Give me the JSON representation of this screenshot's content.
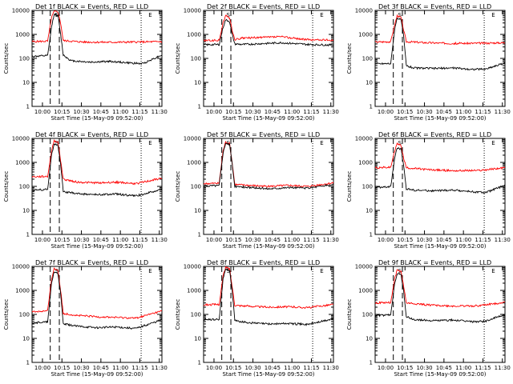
{
  "chart_data": [
    {
      "type": "line",
      "title": "Det 1f BLACK = Events, RED = LLD",
      "xlabel": "Start Time (15-May-09 09:52:00)",
      "ylabel": "Counts/sec",
      "xticks": [
        "10:00",
        "10:15",
        "10:30",
        "10:45",
        "11:00",
        "11:15",
        "11:30"
      ],
      "xlim_minutes": [
        0,
        100
      ],
      "ylim": [
        1,
        10000
      ],
      "yscale": "log",
      "yticks": [
        "1",
        "10",
        "100",
        "1000",
        "10000"
      ],
      "markers": {
        "dashed_minutes": [
          14,
          21
        ],
        "dotted_minutes": [
          84
        ],
        "labels": [
          {
            "text": "S",
            "x_minutes": 19
          },
          {
            "text": "E",
            "x_minutes": 91
          }
        ]
      },
      "series": [
        {
          "color": "#ff0000",
          "x": [
            0,
            12,
            15,
            17,
            20,
            22,
            24,
            40,
            60,
            80,
            100
          ],
          "values": [
            500,
            520,
            5000,
            9000,
            8500,
            3000,
            550,
            480,
            470,
            480,
            500
          ]
        },
        {
          "color": "#000000",
          "x": [
            0,
            12,
            15,
            17,
            20,
            22,
            24,
            30,
            45,
            60,
            75,
            85,
            100
          ],
          "values": [
            120,
            130,
            2000,
            7000,
            6000,
            1000,
            140,
            80,
            70,
            75,
            65,
            60,
            140
          ]
        }
      ]
    },
    {
      "type": "line",
      "title": "Det 2f BLACK = Events, RED = LLD",
      "xlabel": "Start Time (15-May-09 09:52:00)",
      "ylabel": "Counts/sec",
      "xticks": [
        "10:00",
        "10:15",
        "10:30",
        "10:45",
        "11:00",
        "11:15",
        "11:30"
      ],
      "xlim_minutes": [
        0,
        100
      ],
      "ylim": [
        1,
        10000
      ],
      "yscale": "log",
      "yticks": [
        "1",
        "10",
        "100",
        "1000",
        "10000"
      ],
      "markers": {
        "dashed_minutes": [
          14,
          21
        ],
        "dotted_minutes": [
          84
        ],
        "labels": [
          {
            "text": "S",
            "x_minutes": 19
          },
          {
            "text": "E",
            "x_minutes": 91
          }
        ]
      },
      "series": [
        {
          "color": "#ff0000",
          "x": [
            0,
            12,
            15,
            17,
            20,
            22,
            24,
            30,
            60,
            80,
            100
          ],
          "values": [
            550,
            560,
            3000,
            6000,
            5000,
            1500,
            600,
            700,
            800,
            600,
            580
          ]
        },
        {
          "color": "#000000",
          "x": [
            0,
            12,
            15,
            17,
            20,
            22,
            24,
            30,
            60,
            80,
            100
          ],
          "values": [
            370,
            380,
            2000,
            4000,
            3500,
            1000,
            400,
            380,
            450,
            380,
            360
          ]
        }
      ]
    },
    {
      "type": "line",
      "title": "Det 3f BLACK = Events, RED = LLD",
      "xlabel": "Start Time (15-May-09 09:52:00)",
      "ylabel": "Counts/sec",
      "xticks": [
        "10:00",
        "10:15",
        "10:30",
        "10:45",
        "11:00",
        "11:15",
        "11:30"
      ],
      "xlim_minutes": [
        0,
        100
      ],
      "ylim": [
        1,
        10000
      ],
      "yscale": "log",
      "yticks": [
        "1",
        "10",
        "100",
        "1000",
        "10000"
      ],
      "markers": {
        "dashed_minutes": [
          14,
          21
        ],
        "dotted_minutes": [
          84
        ],
        "labels": [
          {
            "text": "S",
            "x_minutes": 19
          },
          {
            "text": "E",
            "x_minutes": 91
          }
        ]
      },
      "series": [
        {
          "color": "#ff0000",
          "x": [
            0,
            12,
            15,
            17,
            20,
            22,
            24,
            40,
            60,
            80,
            100
          ],
          "values": [
            480,
            500,
            2500,
            6000,
            5000,
            1500,
            500,
            450,
            420,
            430,
            450
          ]
        },
        {
          "color": "#000000",
          "x": [
            0,
            12,
            15,
            17,
            20,
            22,
            24,
            30,
            45,
            60,
            75,
            85,
            100
          ],
          "values": [
            60,
            62,
            1500,
            5000,
            4000,
            800,
            50,
            40,
            38,
            40,
            35,
            36,
            65
          ]
        }
      ]
    },
    {
      "type": "line",
      "title": "Det 4f BLACK = Events, RED = LLD",
      "xlabel": "Start Time (15-May-09 09:52:00)",
      "ylabel": "Counts/sec",
      "xticks": [
        "10:00",
        "10:15",
        "10:30",
        "10:45",
        "11:00",
        "11:15",
        "11:30"
      ],
      "xlim_minutes": [
        0,
        100
      ],
      "ylim": [
        1,
        10000
      ],
      "yscale": "log",
      "yticks": [
        "1",
        "10",
        "100",
        "1000",
        "10000"
      ],
      "markers": {
        "dashed_minutes": [
          14,
          21
        ],
        "dotted_minutes": [
          84
        ],
        "labels": [
          {
            "text": "S",
            "x_minutes": 19
          },
          {
            "text": "E",
            "x_minutes": 91
          }
        ]
      },
      "series": [
        {
          "color": "#ff0000",
          "x": [
            0,
            12,
            15,
            17,
            20,
            22,
            24,
            35,
            50,
            65,
            80,
            100
          ],
          "values": [
            250,
            260,
            3000,
            8000,
            7000,
            1200,
            200,
            150,
            140,
            150,
            130,
            220
          ]
        },
        {
          "color": "#000000",
          "x": [
            0,
            12,
            15,
            17,
            20,
            22,
            24,
            35,
            50,
            65,
            80,
            100
          ],
          "values": [
            70,
            75,
            2000,
            6000,
            5000,
            800,
            60,
            50,
            45,
            48,
            40,
            75
          ]
        }
      ]
    },
    {
      "type": "line",
      "title": "Det 5f BLACK = Events, RED = LLD",
      "xlabel": "Start Time (15-May-09 09:52:00)",
      "ylabel": "Counts/sec",
      "xticks": [
        "10:00",
        "10:15",
        "10:30",
        "10:45",
        "11:00",
        "11:15",
        "11:30"
      ],
      "xlim_minutes": [
        0,
        100
      ],
      "ylim": [
        1,
        10000
      ],
      "yscale": "log",
      "yticks": [
        "1",
        "10",
        "100",
        "1000",
        "10000"
      ],
      "markers": {
        "dashed_minutes": [
          14,
          21
        ],
        "dotted_minutes": [
          84
        ],
        "labels": [
          {
            "text": "S",
            "x_minutes": 19
          },
          {
            "text": "E",
            "x_minutes": 91
          }
        ]
      },
      "series": [
        {
          "color": "#ff0000",
          "x": [
            0,
            12,
            15,
            17,
            20,
            22,
            24,
            35,
            50,
            65,
            80,
            100
          ],
          "values": [
            130,
            135,
            3000,
            7000,
            6000,
            1000,
            120,
            110,
            100,
            110,
            100,
            140
          ]
        },
        {
          "color": "#000000",
          "x": [
            0,
            12,
            15,
            17,
            20,
            22,
            24,
            35,
            50,
            65,
            80,
            100
          ],
          "values": [
            105,
            110,
            2500,
            6500,
            5500,
            900,
            100,
            90,
            80,
            90,
            85,
            120
          ]
        }
      ]
    },
    {
      "type": "line",
      "title": "Det 6f BLACK = Events, RED = LLD",
      "xlabel": "Start Time (15-May-09 09:52:00)",
      "ylabel": "Counts/sec",
      "xticks": [
        "10:00",
        "10:15",
        "10:30",
        "10:45",
        "11:00",
        "11:15",
        "11:30"
      ],
      "xlim_minutes": [
        0,
        100
      ],
      "ylim": [
        1,
        10000
      ],
      "yscale": "log",
      "yticks": [
        "1",
        "10",
        "100",
        "1000",
        "10000"
      ],
      "markers": {
        "dashed_minutes": [
          14,
          21
        ],
        "dotted_minutes": [
          84
        ],
        "labels": [
          {
            "text": "S",
            "x_minutes": 19
          },
          {
            "text": "E",
            "x_minutes": 91
          }
        ]
      },
      "series": [
        {
          "color": "#ff0000",
          "x": [
            0,
            12,
            15,
            17,
            20,
            22,
            24,
            40,
            60,
            80,
            100
          ],
          "values": [
            600,
            620,
            3000,
            6000,
            5000,
            1500,
            600,
            500,
            450,
            460,
            600
          ]
        },
        {
          "color": "#000000",
          "x": [
            0,
            12,
            15,
            17,
            20,
            22,
            24,
            30,
            45,
            60,
            75,
            85,
            100
          ],
          "values": [
            90,
            95,
            1500,
            4000,
            3500,
            700,
            80,
            70,
            65,
            70,
            60,
            55,
            110
          ]
        }
      ]
    },
    {
      "type": "line",
      "title": "Det 7f BLACK = Events, RED = LLD",
      "xlabel": "Start Time (15-May-09 09:52:00)",
      "ylabel": "Counts/sec",
      "xticks": [
        "10:00",
        "10:15",
        "10:30",
        "10:45",
        "11:00",
        "11:15",
        "11:30"
      ],
      "xlim_minutes": [
        0,
        100
      ],
      "ylim": [
        1,
        10000
      ],
      "yscale": "log",
      "yticks": [
        "1",
        "10",
        "100",
        "1000",
        "10000"
      ],
      "markers": {
        "dashed_minutes": [
          14,
          21
        ],
        "dotted_minutes": [
          84
        ],
        "labels": [
          {
            "text": "S",
            "x_minutes": 19
          },
          {
            "text": "E",
            "x_minutes": 91
          }
        ]
      },
      "series": [
        {
          "color": "#ff0000",
          "x": [
            0,
            12,
            15,
            17,
            20,
            22,
            24,
            35,
            50,
            65,
            80,
            100
          ],
          "values": [
            130,
            140,
            3000,
            8000,
            7000,
            1000,
            110,
            90,
            80,
            75,
            70,
            140
          ]
        },
        {
          "color": "#000000",
          "x": [
            0,
            12,
            15,
            17,
            20,
            22,
            24,
            35,
            50,
            65,
            80,
            100
          ],
          "values": [
            45,
            48,
            2000,
            6000,
            5000,
            700,
            40,
            32,
            28,
            30,
            26,
            60
          ]
        }
      ]
    },
    {
      "type": "line",
      "title": "Det 8f BLACK = Events, RED = LLD",
      "xlabel": "Start Time (15-May-09 09:52:00)",
      "ylabel": "Counts/sec",
      "xticks": [
        "10:00",
        "10:15",
        "10:30",
        "10:45",
        "11:00",
        "11:15",
        "11:30"
      ],
      "xlim_minutes": [
        0,
        100
      ],
      "ylim": [
        1,
        10000
      ],
      "yscale": "log",
      "yticks": [
        "1",
        "10",
        "100",
        "1000",
        "10000"
      ],
      "markers": {
        "dashed_minutes": [
          14,
          21
        ],
        "dotted_minutes": [
          84
        ],
        "labels": [
          {
            "text": "S",
            "x_minutes": 19
          },
          {
            "text": "E",
            "x_minutes": 91
          }
        ]
      },
      "series": [
        {
          "color": "#ff0000",
          "x": [
            0,
            12,
            15,
            17,
            20,
            22,
            24,
            35,
            50,
            65,
            80,
            100
          ],
          "values": [
            250,
            260,
            4000,
            9000,
            8000,
            1500,
            240,
            220,
            200,
            210,
            190,
            260
          ]
        },
        {
          "color": "#000000",
          "x": [
            0,
            12,
            15,
            17,
            20,
            22,
            24,
            35,
            50,
            65,
            80,
            100
          ],
          "values": [
            60,
            62,
            3000,
            8000,
            7000,
            1000,
            55,
            45,
            40,
            42,
            38,
            65
          ]
        }
      ]
    },
    {
      "type": "line",
      "title": "Det 9f BLACK = Events, RED = LLD",
      "xlabel": "Start Time (15-May-09 09:52:00)",
      "ylabel": "Counts/sec",
      "xticks": [
        "10:00",
        "10:15",
        "10:30",
        "10:45",
        "11:00",
        "11:15",
        "11:30"
      ],
      "xlim_minutes": [
        0,
        100
      ],
      "ylim": [
        1,
        10000
      ],
      "yscale": "log",
      "yticks": [
        "1",
        "10",
        "100",
        "1000",
        "10000"
      ],
      "markers": {
        "dashed_minutes": [
          14,
          21
        ],
        "dotted_minutes": [
          84
        ],
        "labels": [
          {
            "text": "S",
            "x_minutes": 19
          },
          {
            "text": "E",
            "x_minutes": 91
          }
        ]
      },
      "series": [
        {
          "color": "#ff0000",
          "x": [
            0,
            12,
            15,
            17,
            20,
            22,
            24,
            40,
            60,
            80,
            100
          ],
          "values": [
            300,
            310,
            3000,
            7000,
            6000,
            1500,
            300,
            250,
            220,
            230,
            320
          ]
        },
        {
          "color": "#000000",
          "x": [
            0,
            12,
            15,
            17,
            20,
            22,
            24,
            30,
            45,
            60,
            75,
            85,
            100
          ],
          "values": [
            90,
            95,
            2000,
            5000,
            4500,
            900,
            80,
            60,
            55,
            58,
            50,
            52,
            100
          ]
        }
      ]
    }
  ]
}
